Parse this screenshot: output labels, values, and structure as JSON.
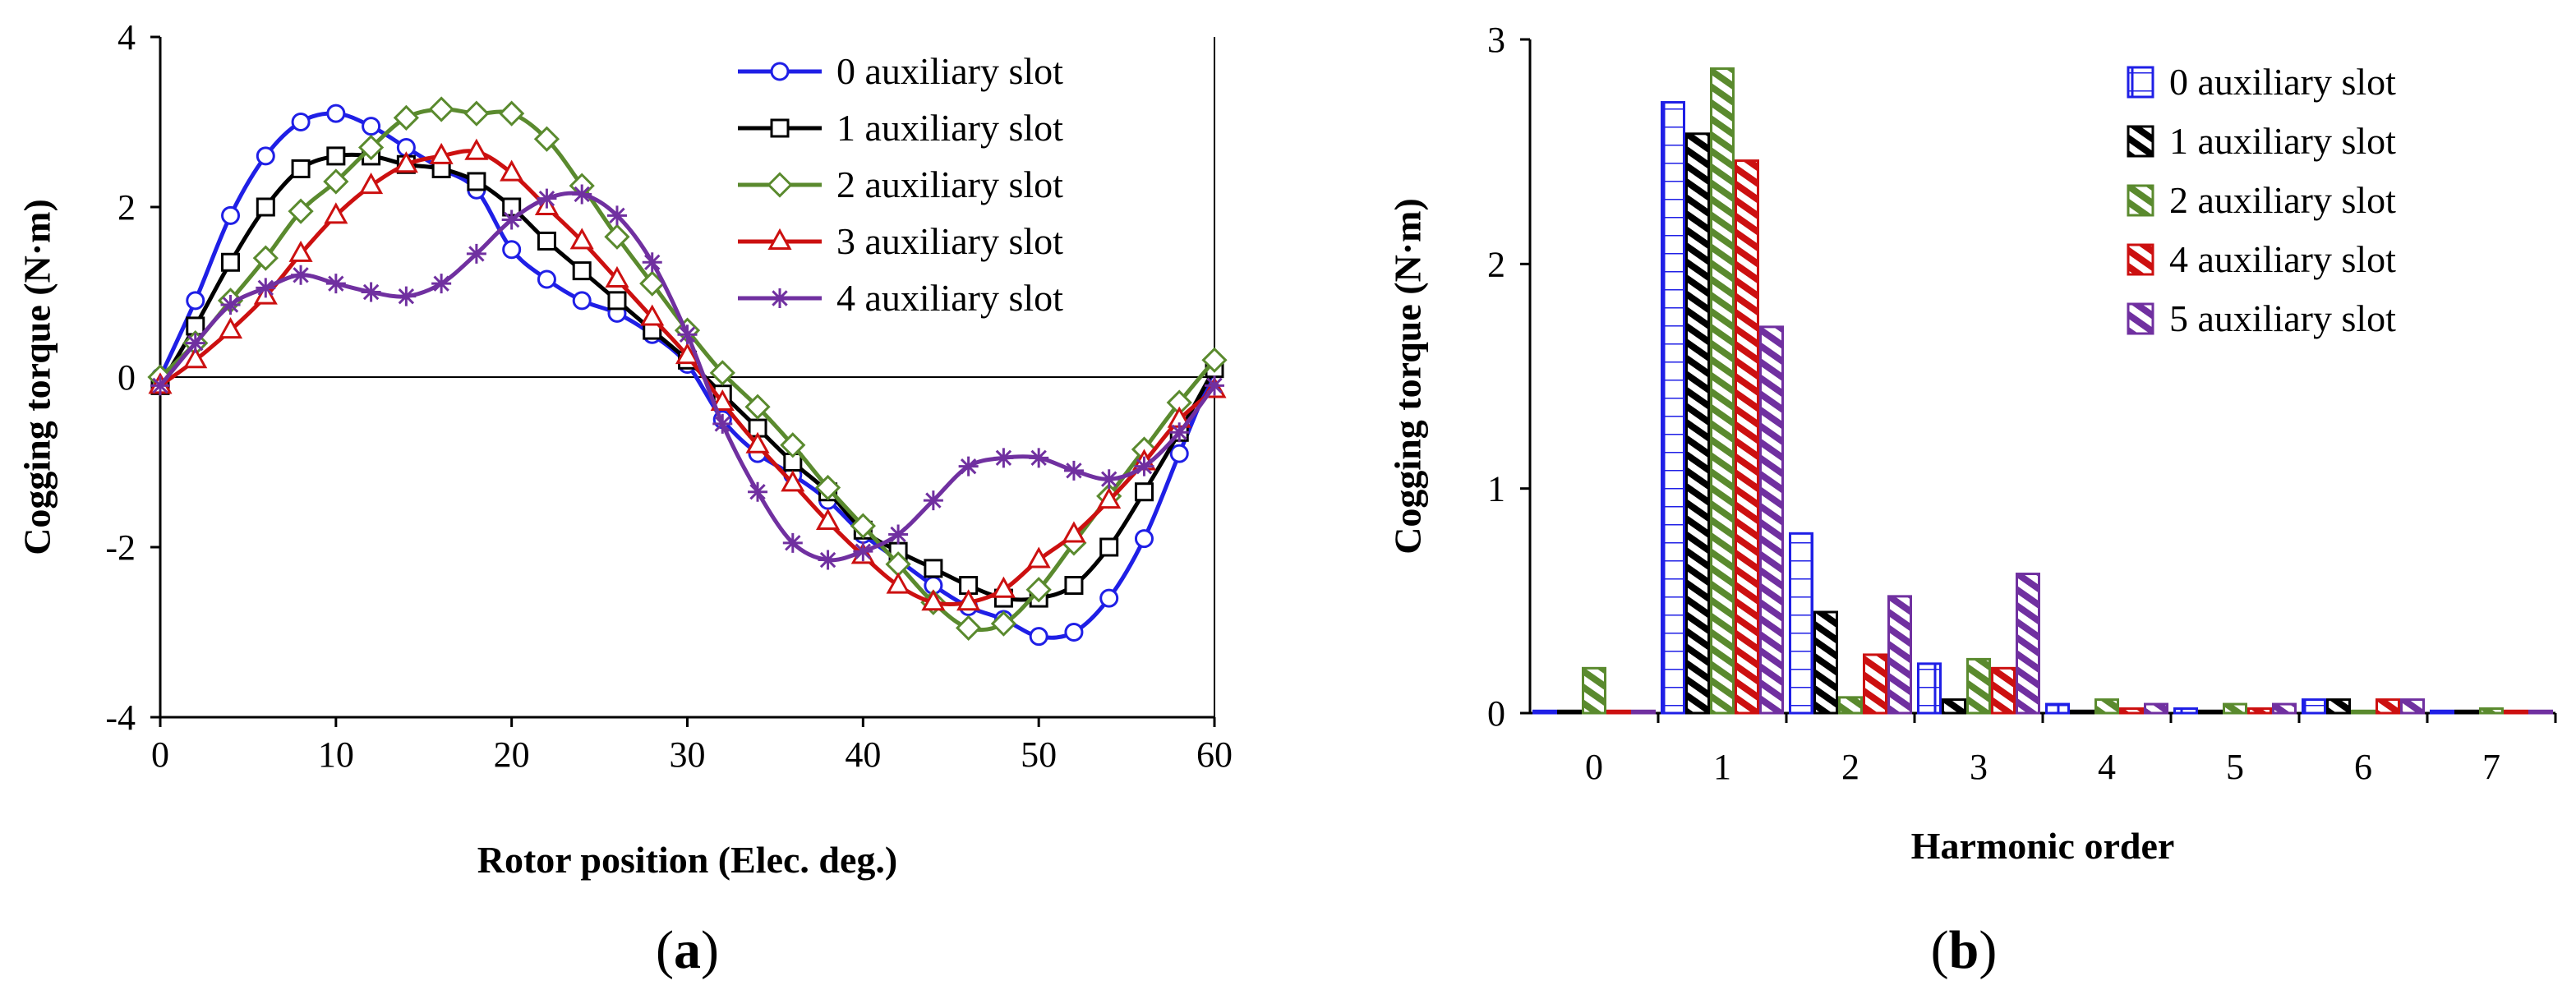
{
  "chart_data": [
    {
      "panel": "(a)",
      "panel_letter": "a",
      "type": "line",
      "xlabel": "Rotor position (Elec. deg.)",
      "ylabel": "Cogging torque (N·m)",
      "xlim": [
        0,
        60
      ],
      "ylim": [
        -4,
        4
      ],
      "xticks": [
        0,
        10,
        20,
        30,
        40,
        50,
        60
      ],
      "yticks": [
        -4,
        -2,
        0,
        2,
        4
      ],
      "grid": false,
      "legend_position": "top-right",
      "x": [
        0,
        2,
        4,
        6,
        8,
        10,
        12,
        14,
        16,
        18,
        20,
        22,
        24,
        26,
        28,
        30,
        32,
        34,
        36,
        38,
        40,
        42,
        44,
        46,
        48,
        50,
        52,
        54,
        56,
        58,
        60
      ],
      "series": [
        {
          "name": "0 auxiliary slot",
          "color": "#1f1fe6",
          "marker": "circle",
          "values": [
            0,
            0.9,
            1.9,
            2.6,
            3.0,
            3.1,
            2.95,
            2.7,
            2.45,
            2.2,
            1.5,
            1.15,
            0.9,
            0.75,
            0.5,
            0.15,
            -0.5,
            -0.9,
            -1.15,
            -1.45,
            -1.85,
            -2.15,
            -2.45,
            -2.7,
            -2.85,
            -3.05,
            -3.0,
            -2.6,
            -1.9,
            -0.9,
            0.1
          ]
        },
        {
          "name": "1 auxiliary slot",
          "color": "#000000",
          "marker": "square",
          "values": [
            -0.1,
            0.6,
            1.35,
            2.0,
            2.45,
            2.6,
            2.6,
            2.5,
            2.45,
            2.3,
            2.0,
            1.6,
            1.25,
            0.9,
            0.55,
            0.2,
            -0.2,
            -0.6,
            -1.0,
            -1.35,
            -1.8,
            -2.05,
            -2.25,
            -2.45,
            -2.6,
            -2.6,
            -2.45,
            -2.0,
            -1.35,
            -0.65,
            0.1
          ]
        },
        {
          "name": "2 auxiliary slot",
          "color": "#5a8a2e",
          "marker": "diamond",
          "values": [
            0,
            0.4,
            0.9,
            1.4,
            1.95,
            2.3,
            2.7,
            3.05,
            3.15,
            3.1,
            3.1,
            2.8,
            2.25,
            1.65,
            1.1,
            0.55,
            0.05,
            -0.35,
            -0.8,
            -1.3,
            -1.75,
            -2.2,
            -2.65,
            -2.95,
            -2.9,
            -2.5,
            -1.95,
            -1.4,
            -0.85,
            -0.3,
            0.2
          ]
        },
        {
          "name": "3 auxiliary slot",
          "color": "#cc1010",
          "marker": "triangle",
          "values": [
            -0.1,
            0.2,
            0.55,
            0.95,
            1.45,
            1.9,
            2.25,
            2.5,
            2.6,
            2.65,
            2.4,
            2.0,
            1.6,
            1.15,
            0.7,
            0.25,
            -0.3,
            -0.8,
            -1.25,
            -1.7,
            -2.1,
            -2.45,
            -2.65,
            -2.65,
            -2.5,
            -2.15,
            -1.85,
            -1.45,
            -1.0,
            -0.5,
            -0.15
          ]
        },
        {
          "name": "4 auxiliary slot",
          "color": "#7030a0",
          "marker": "asterisk",
          "values": [
            -0.1,
            0.4,
            0.85,
            1.05,
            1.2,
            1.1,
            1.0,
            0.95,
            1.1,
            1.45,
            1.85,
            2.1,
            2.15,
            1.9,
            1.35,
            0.5,
            -0.55,
            -1.35,
            -1.95,
            -2.15,
            -2.05,
            -1.85,
            -1.45,
            -1.05,
            -0.95,
            -0.95,
            -1.1,
            -1.2,
            -1.05,
            -0.65,
            -0.1
          ]
        }
      ]
    },
    {
      "panel": "(b)",
      "panel_letter": "b",
      "type": "bar",
      "xlabel": "Harmonic order",
      "ylabel": "Cogging torque (N·m)",
      "ylim": [
        0,
        3
      ],
      "yticks": [
        0,
        1,
        2,
        3
      ],
      "categories": [
        "0",
        "1",
        "2",
        "3",
        "4",
        "5",
        "6",
        "7"
      ],
      "grid": false,
      "legend_position": "top-right",
      "series": [
        {
          "name": "0 auxiliary slot",
          "color": "#1f1fe6",
          "pattern": "grid",
          "values": [
            0.01,
            2.72,
            0.8,
            0.22,
            0.04,
            0.02,
            0.06,
            0.01
          ]
        },
        {
          "name": "1 auxiliary slot",
          "color": "#000000",
          "pattern": "diagonal",
          "values": [
            0.01,
            2.58,
            0.45,
            0.06,
            0.01,
            0.01,
            0.06,
            0.01
          ]
        },
        {
          "name": "2 auxiliary slot",
          "color": "#5a8a2e",
          "pattern": "diagonal",
          "values": [
            0.2,
            2.87,
            0.07,
            0.24,
            0.06,
            0.04,
            0.01,
            0.02
          ]
        },
        {
          "name": "4 auxiliary slot",
          "color": "#cc1010",
          "pattern": "diagonal",
          "values": [
            0.01,
            2.46,
            0.26,
            0.2,
            0.02,
            0.02,
            0.06,
            0.01
          ]
        },
        {
          "name": "5 auxiliary slot",
          "color": "#7030a0",
          "pattern": "diagonal",
          "values": [
            0.01,
            1.72,
            0.52,
            0.62,
            0.04,
            0.04,
            0.06,
            0.01
          ]
        }
      ]
    }
  ]
}
